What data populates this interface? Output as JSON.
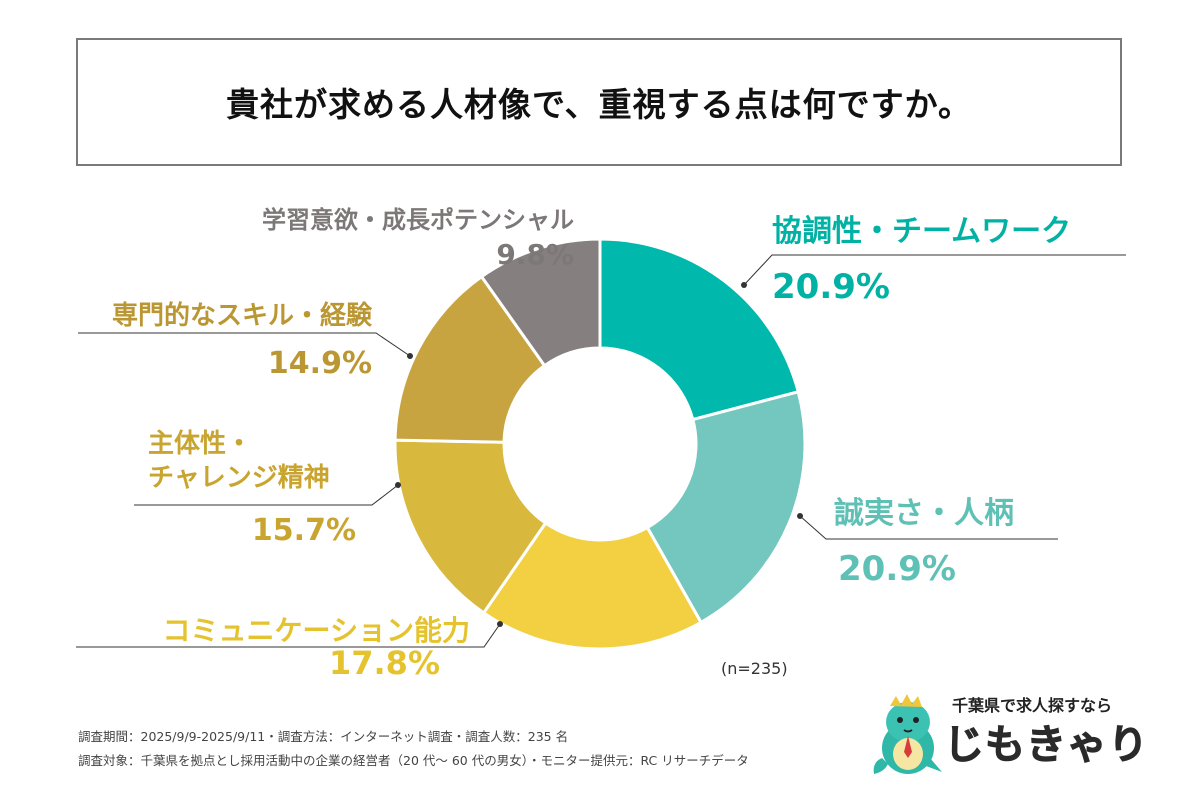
{
  "title": "貴社が求める人材像で、重視する点は何ですか。",
  "chart_data": {
    "type": "pie",
    "variant": "donut",
    "title": "貴社が求める人材像で、重視する点は何ですか。",
    "slices": [
      {
        "label": "協調性・チームワーク",
        "value": 20.9,
        "value_label": "20.9%",
        "color": "#00b8ac",
        "label_color": "#00b1a4"
      },
      {
        "label": "誠実さ・人柄",
        "value": 20.9,
        "value_label": "20.9%",
        "color": "#74c7be",
        "label_color": "#5fc0b5"
      },
      {
        "label": "コミュニケーション能力",
        "value": 17.8,
        "value_label": "17.8%",
        "color": "#f2d041",
        "label_color": "#e5c32e"
      },
      {
        "label": "主体性・チャレンジ精神",
        "value": 15.7,
        "value_label": "15.7%",
        "color": "#d9b83e",
        "label_color": "#c9a530"
      },
      {
        "label": "専門的なスキル・経験",
        "value": 14.9,
        "value_label": "14.9%",
        "color": "#c8a440",
        "label_color": "#bb9734"
      },
      {
        "label": "学習意欲・成長ポテンシャル",
        "value": 9.8,
        "value_label": "9.8%",
        "color": "#85807f",
        "label_color": "#7d7878"
      }
    ],
    "sample_note": "(n=235)"
  },
  "labels": {
    "s0_name": "協調性・チームワーク",
    "s1_name": "誠実さ・人柄",
    "s2_name": "コミュニケーション能力",
    "s3_name_1": "主体性・",
    "s3_name_2": "チャレンジ精神",
    "s4_name": "専門的なスキル・経験",
    "s5_name": "学習意欲・成長ポテンシャル"
  },
  "footer": {
    "line1": "調査期間：2025/9/9-2025/9/11・調査方法：インターネット調査・調査人数：235 名",
    "line2": "調査対象：千葉県を拠点とし採用活動中の企業の経営者（20 代〜 60 代の男女）・モニター提供元：RC リサーチデータ"
  },
  "logo": {
    "tagline": "千葉県で求人探すなら",
    "brand": "じもきゃり"
  }
}
